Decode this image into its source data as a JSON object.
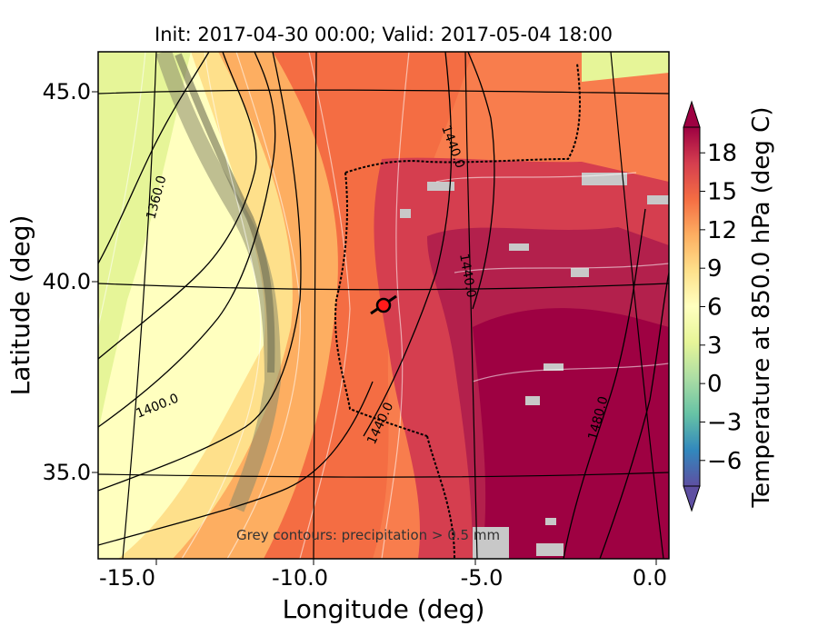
{
  "title": "Init: 2017-04-30 00:00; Valid: 2017-05-04 18:00",
  "map": {
    "xlabel": "Longitude (deg)",
    "ylabel": "Latitude (deg)",
    "xticks": [
      "-15.0",
      "-10.0",
      "-5.0",
      "0.0"
    ],
    "yticks": [
      "45.0",
      "40.0",
      "35.0"
    ],
    "note": "Grey contours: precipitation > 0.5 mm",
    "contour_labels": [
      "1360.0",
      "1400.0",
      "1440.0",
      "1440.0",
      "1440.0",
      "1480.0"
    ],
    "marker_color": "#ff1a1a"
  },
  "colorbar": {
    "label": "Temperature at 850.0 hPa (deg C)",
    "ticks": [
      "18",
      "15",
      "12",
      "9",
      "6",
      "3",
      "0",
      "−3",
      "−6"
    ],
    "min": -8,
    "max": 20,
    "stops": [
      "#5e4fa2",
      "#3288bd",
      "#66c2a5",
      "#abdda4",
      "#e6f598",
      "#ffffbf",
      "#fee08b",
      "#fdae61",
      "#f46d43",
      "#d53e4f",
      "#9e0142"
    ]
  }
}
